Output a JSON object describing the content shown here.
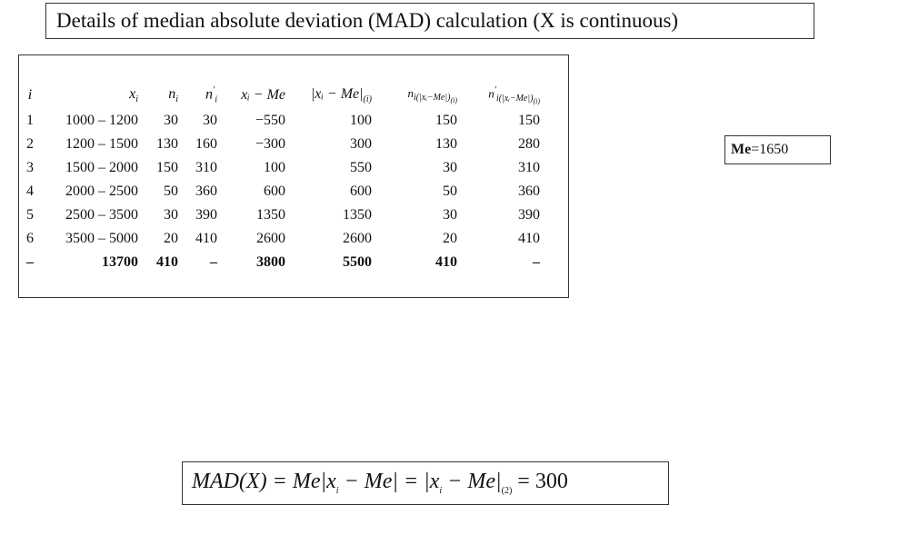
{
  "title": "Details of median absolute deviation (MAD) calculation (X is continuous)",
  "table": {
    "headers": {
      "i": "i",
      "xi": {
        "main": "x",
        "sub": "i"
      },
      "ni": {
        "main": "n",
        "sub": "i"
      },
      "nci": {
        "main": "n",
        "sup": "′",
        "sub": "i"
      },
      "dev": "xᵢ − Me",
      "absdev": {
        "main": "|xᵢ − Me|",
        "sub": "(i)"
      },
      "nabs": {
        "main": "n",
        "sub": "i(|xᵢ−Me|)",
        "subsub": "(i)"
      },
      "ncabs": {
        "main": "n",
        "sup": "′",
        "sub": "i(|xᵢ−Me|)",
        "subsub": "(i)"
      }
    },
    "rows": [
      [
        "1",
        "1000 – 1200",
        "30",
        "30",
        "−550",
        "100",
        "150",
        "150"
      ],
      [
        "2",
        "1200 – 1500",
        "130",
        "160",
        "−300",
        "300",
        "130",
        "280"
      ],
      [
        "3",
        "1500 – 2000",
        "150",
        "310",
        "100",
        "550",
        "30",
        "310"
      ],
      [
        "4",
        "2000 – 2500",
        "50",
        "360",
        "600",
        "600",
        "50",
        "360"
      ],
      [
        "5",
        "2500 – 3500",
        "30",
        "390",
        "1350",
        "1350",
        "30",
        "390"
      ],
      [
        "6",
        "3500 – 5000",
        "20",
        "410",
        "2600",
        "2600",
        "20",
        "410"
      ]
    ],
    "total": [
      "–",
      "13700",
      "410",
      "–",
      "3800",
      "5500",
      "410",
      "–"
    ]
  },
  "median": {
    "label": "Me",
    "value": "=1650"
  },
  "formula": {
    "lhs": "MAD(X) = Me|x",
    "s1": "i",
    "mid": " − Me| = |x",
    "s2": "i",
    "mid2": " − Me|",
    "s3": "(2)",
    "eq": " = ",
    "result": "300"
  }
}
